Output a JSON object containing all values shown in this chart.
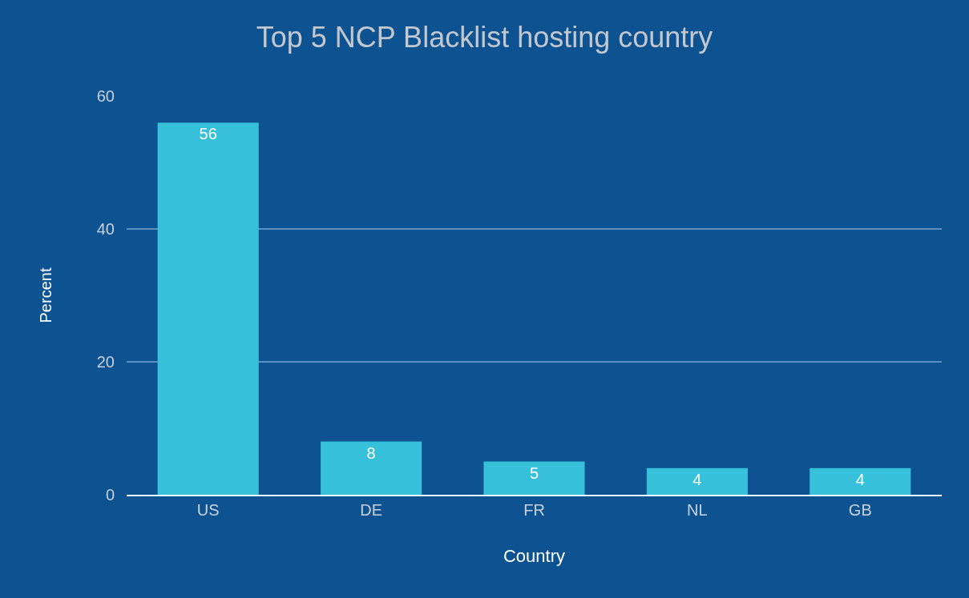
{
  "chart_data": {
    "type": "bar",
    "title": "Top 5 NCP Blacklist hosting country",
    "xlabel": "Country",
    "ylabel": "Percent",
    "categories": [
      "US",
      "DE",
      "FR",
      "NL",
      "GB"
    ],
    "values": [
      56,
      8,
      5,
      4,
      4
    ],
    "color": "#36c0d9",
    "ylim": [
      0,
      60
    ],
    "yticks": [
      0,
      20,
      40,
      60
    ],
    "grid": "y",
    "data_labels": true,
    "legend": false
  }
}
